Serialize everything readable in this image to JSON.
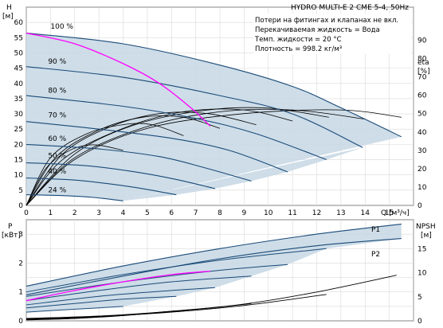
{
  "chart_data": [
    {
      "type": "line",
      "title": "HYDRO MULTI-E 2 CME 5-4, 50Hz",
      "notes": [
        "Потери на фитингах и клапанах не вкл.",
        "Перекачиваемая жидкость = Вода",
        "Темп. жидкости = 20 °C",
        "Плотность = 998.2 кг/м³"
      ],
      "ylabel_left": "H",
      "ylabel_left_unit": "[м]",
      "ylabel_right": "eta",
      "ylabel_right_unit": "[%]",
      "xlabel": "Q [м³/ч]",
      "xlim": [
        0,
        16
      ],
      "ylim_left": [
        0,
        65
      ],
      "ylim_right": [
        0,
        100
      ],
      "x_ticks": [
        "0",
        "1",
        "2",
        "3",
        "4",
        "5",
        "6",
        "7",
        "8",
        "9",
        "10",
        "11",
        "12",
        "13",
        "14",
        "15"
      ],
      "y_ticks_left": [
        "0",
        "5",
        "10",
        "15",
        "20",
        "25",
        "30",
        "35",
        "40",
        "45",
        "50",
        "55",
        "60",
        "65"
      ],
      "y_ticks_right": [
        "0",
        "10",
        "20",
        "30",
        "40",
        "50",
        "60",
        "70",
        "80",
        "90"
      ],
      "grid": true,
      "speed_labels": [
        "100 %",
        "90 %",
        "80 %",
        "70 %",
        "60 %",
        "50 %",
        "40 %",
        "24 %"
      ],
      "series": [
        {
          "name": "100 %",
          "x": [
            0,
            4,
            8,
            11,
            13,
            15.5
          ],
          "y": [
            56.5,
            53,
            46,
            39,
            32,
            22.5
          ]
        },
        {
          "name": "90 %",
          "x": [
            0,
            4,
            8,
            11,
            13.9
          ],
          "y": [
            45.5,
            42,
            36,
            30,
            19
          ]
        },
        {
          "name": "80 %",
          "x": [
            0,
            4,
            7,
            9.5,
            12.4
          ],
          "y": [
            36,
            32.5,
            28.5,
            23.5,
            15
          ]
        },
        {
          "name": "70 %",
          "x": [
            0,
            3,
            6,
            8.4,
            10.8
          ],
          "y": [
            27.5,
            25,
            22,
            18,
            11
          ]
        },
        {
          "name": "60 %",
          "x": [
            0,
            3,
            5.5,
            7.3,
            9.3
          ],
          "y": [
            20,
            18.5,
            16,
            12.5,
            8
          ]
        },
        {
          "name": "50 %",
          "x": [
            0,
            2.5,
            4.5,
            6.2,
            7.8
          ],
          "y": [
            14,
            13,
            11,
            8.5,
            5.5
          ]
        },
        {
          "name": "40 %",
          "x": [
            0,
            2,
            3.5,
            4.8,
            6.2
          ],
          "y": [
            9,
            8.3,
            7,
            5.5,
            3.5
          ]
        },
        {
          "name": "24 %",
          "x": [
            0,
            1.5,
            2.8,
            4
          ],
          "y": [
            3.5,
            3.2,
            2.6,
            1.5
          ]
        }
      ],
      "highlighted_curve": {
        "x": [
          0,
          2,
          4,
          5.5,
          6.8,
          7.6
        ],
        "y": [
          56.5,
          53,
          46.5,
          40,
          32,
          26
        ]
      },
      "efficiency_curves": [
        {
          "x": [
            0,
            2,
            5,
            9,
            13,
            15.5
          ],
          "y": [
            0,
            25,
            42,
            50,
            52,
            48
          ]
        },
        {
          "x": [
            0,
            2,
            5,
            8,
            11,
            14
          ],
          "y": [
            0,
            26,
            43,
            51,
            52,
            47
          ]
        },
        {
          "x": [
            0,
            2,
            4.5,
            7.5,
            10,
            12.5
          ],
          "y": [
            0,
            28,
            44,
            52,
            53,
            48
          ]
        },
        {
          "x": [
            0,
            1.5,
            4,
            6.5,
            9,
            11
          ],
          "y": [
            0,
            25,
            42,
            51,
            52,
            46
          ]
        },
        {
          "x": [
            0,
            1.5,
            3.5,
            5.5,
            7.5,
            9.5
          ],
          "y": [
            0,
            28,
            43,
            50,
            50,
            44
          ]
        },
        {
          "x": [
            0,
            1.2,
            3,
            4.8,
            6.5,
            8
          ],
          "y": [
            0,
            26,
            41,
            48,
            48,
            42
          ]
        },
        {
          "x": [
            0,
            1,
            2.5,
            4,
            5.2,
            6.5
          ],
          "y": [
            0,
            26,
            39,
            44,
            44,
            38
          ]
        },
        {
          "x": [
            0,
            0.8,
            1.8,
            2.8,
            4
          ],
          "y": [
            0,
            20,
            30,
            33,
            30
          ]
        }
      ],
      "reference_points": [
        {
          "x": 0,
          "y": 56.5
        },
        {
          "x": 0,
          "y": 45.5
        },
        {
          "x": 0,
          "y": 36
        },
        {
          "x": 0,
          "y": 27.5
        },
        {
          "x": 0,
          "y": 20
        },
        {
          "x": 0,
          "y": 14
        },
        {
          "x": 0,
          "y": 9
        },
        {
          "x": 0,
          "y": 3.5
        }
      ],
      "shading_color": "#c9d9e6",
      "curve_color": "#1a4a78",
      "highlight_color": "#ff00ff"
    },
    {
      "type": "line",
      "ylabel_left": "P",
      "ylabel_left_unit": "[кВт]",
      "ylabel_right": "NPSH",
      "ylabel_right_unit": "[м]",
      "xlim": [
        0,
        16
      ],
      "ylim_left": [
        0,
        3.5
      ],
      "ylim_right": [
        0,
        20
      ],
      "y_ticks_left": [
        "0",
        "1",
        "2",
        "3"
      ],
      "y_ticks_right": [
        "0",
        "5",
        "10",
        "15"
      ],
      "grid": true,
      "series_labels": [
        "P1",
        "P2"
      ],
      "series": [
        {
          "name": "P1",
          "x": [
            0,
            4,
            8,
            12,
            15.5
          ],
          "y": [
            1.2,
            1.9,
            2.5,
            3.0,
            3.35
          ]
        },
        {
          "name": "P2",
          "x": [
            0,
            4,
            8,
            12,
            15.5
          ],
          "y": [
            0.9,
            1.55,
            2.15,
            2.6,
            2.85
          ]
        }
      ],
      "power_curves": [
        {
          "x": [
            0,
            4,
            8,
            12.4
          ],
          "y": [
            1.0,
            1.6,
            2.1,
            2.5
          ]
        },
        {
          "x": [
            0,
            4,
            8,
            10.8
          ],
          "y": [
            0.85,
            1.35,
            1.75,
            1.95
          ]
        },
        {
          "x": [
            0,
            3,
            6,
            9.3
          ],
          "y": [
            0.7,
            1.05,
            1.35,
            1.55
          ]
        },
        {
          "x": [
            0,
            3,
            6,
            7.8
          ],
          "y": [
            0.55,
            0.85,
            1.05,
            1.15
          ]
        },
        {
          "x": [
            0,
            2,
            4,
            6.2
          ],
          "y": [
            0.45,
            0.6,
            0.75,
            0.85
          ]
        },
        {
          "x": [
            0,
            1.5,
            3,
            4
          ],
          "y": [
            0.3,
            0.38,
            0.45,
            0.5
          ]
        }
      ],
      "highlighted_curve": {
        "x": [
          0,
          2,
          4,
          6,
          7.6
        ],
        "y": [
          0.7,
          1.05,
          1.35,
          1.6,
          1.72
        ]
      },
      "npsh_curves": [
        {
          "x": [
            0,
            3,
            6,
            9,
            12,
            15.3
          ],
          "y": [
            0.5,
            1.0,
            2.0,
            3.5,
            6.0,
            9.5
          ]
        },
        {
          "x": [
            0,
            3,
            6,
            9,
            12.4
          ],
          "y": [
            0.4,
            0.9,
            1.8,
            3.2,
            5.5
          ]
        },
        {
          "x": [
            0,
            2.5,
            5,
            7.5,
            9.3
          ],
          "y": [
            0.3,
            0.7,
            1.5,
            2.6,
            3.6
          ]
        },
        {
          "x": [
            0,
            2,
            4,
            5.8,
            6.2
          ],
          "y": [
            0.2,
            0.5,
            1.1,
            1.9,
            2.1
          ]
        }
      ]
    }
  ]
}
